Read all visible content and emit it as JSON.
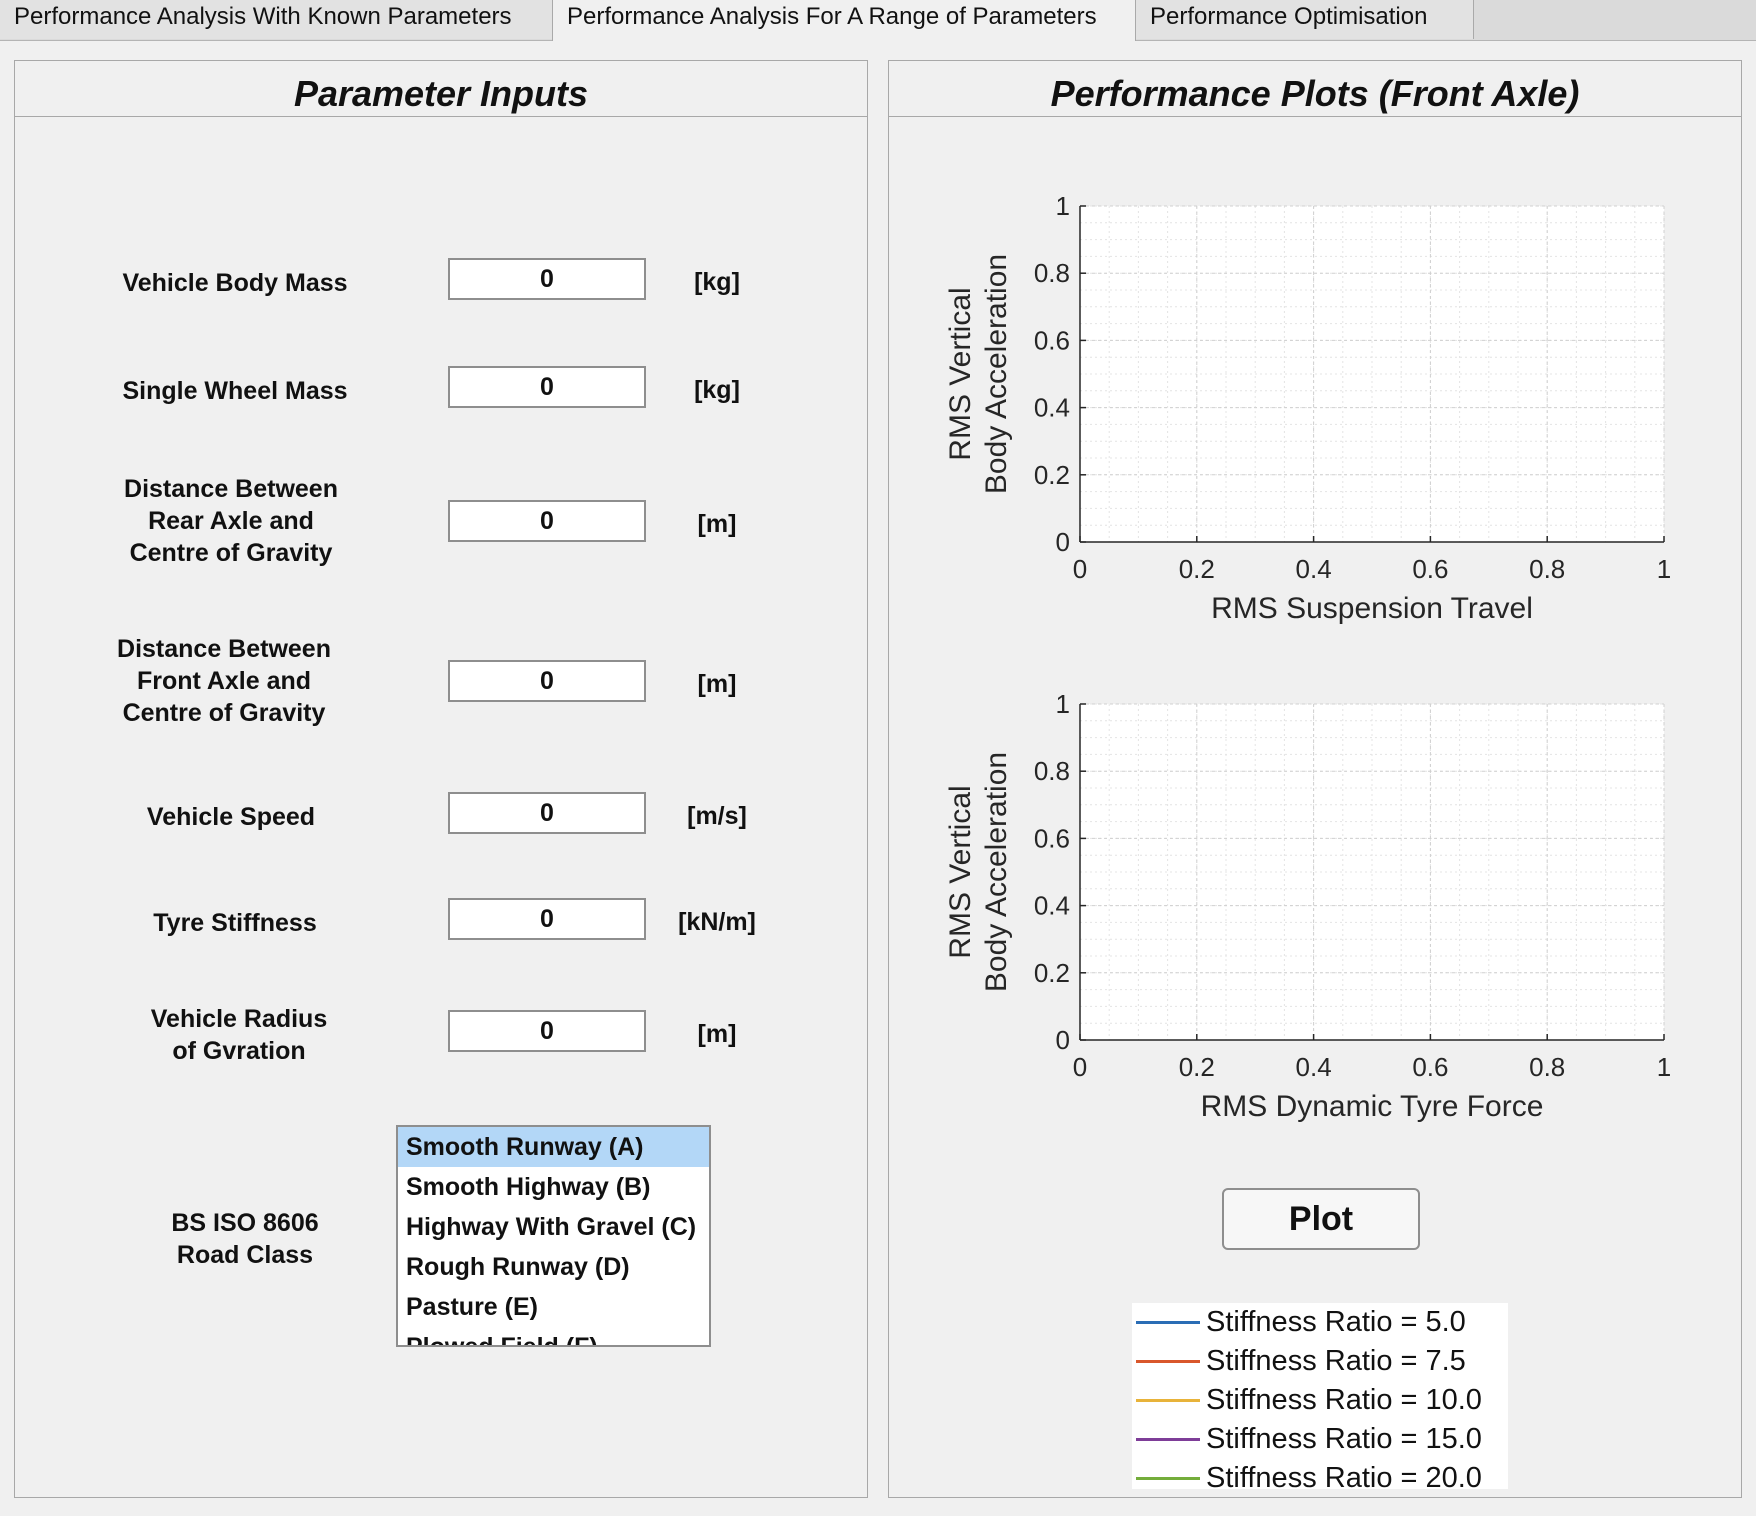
{
  "tabs": [
    {
      "label": "Performance Analysis With Known Parameters"
    },
    {
      "label": "Performance Analysis For A Range of Parameters"
    },
    {
      "label": "Performance Optimisation"
    }
  ],
  "left_panel": {
    "title": "Parameter Inputs",
    "params": [
      {
        "label": "Vehicle Body Mass",
        "value": "0",
        "unit": "[kg]"
      },
      {
        "label": "Single Wheel Mass",
        "value": "0",
        "unit": "[kg]"
      },
      {
        "label": "Distance Between\nRear Axle and\nCentre of Gravity",
        "value": "0",
        "unit": "[m]"
      },
      {
        "label": "Distance Between\nFront Axle and\nCentre of Gravity",
        "value": "0",
        "unit": "[m]"
      },
      {
        "label": "Vehicle Speed",
        "value": "0",
        "unit": "[m/s]"
      },
      {
        "label": "Tyre Stiffness",
        "value": "0",
        "unit": "[kN/m]"
      },
      {
        "label": "Vehicle Radius\nof Gvration",
        "value": "0",
        "unit": "[m]"
      }
    ],
    "road_class": {
      "label": "BS ISO 8606\nRoad Class",
      "options": [
        "Smooth Runway (A)",
        "Smooth Highway (B)",
        "Highway With Gravel (C)",
        "Rough Runway (D)",
        "Pasture (E)",
        "Plowed Field (F)"
      ],
      "selected": "Smooth Runway (A)"
    }
  },
  "right_panel": {
    "title": "Performance Plots (Front Axle)",
    "plot_button": "Plot"
  },
  "chart_data": [
    {
      "type": "line",
      "xlabel": "RMS Suspension Travel",
      "ylabel": [
        "RMS Vertical",
        "Body Acceleration"
      ],
      "xlim": [
        0,
        1
      ],
      "ylim": [
        0,
        1
      ],
      "xticks": [
        "0",
        "0.2",
        "0.4",
        "0.6",
        "0.8",
        "1"
      ],
      "yticks": [
        "0",
        "0.2",
        "0.4",
        "0.6",
        "0.8",
        "1"
      ],
      "grid": true,
      "minor_grid": true,
      "series": []
    },
    {
      "type": "line",
      "xlabel": "RMS Dynamic Tyre Force",
      "ylabel": [
        "RMS Vertical",
        "Body Acceleration"
      ],
      "xlim": [
        0,
        1
      ],
      "ylim": [
        0,
        1
      ],
      "xticks": [
        "0",
        "0.2",
        "0.4",
        "0.6",
        "0.8",
        "1"
      ],
      "yticks": [
        "0",
        "0.2",
        "0.4",
        "0.6",
        "0.8",
        "1"
      ],
      "grid": true,
      "minor_grid": true,
      "series": []
    }
  ],
  "legend": [
    {
      "label": "Stiffness Ratio = 5.0",
      "color": "#2a6db5"
    },
    {
      "label": "Stiffness Ratio = 7.5",
      "color": "#d9572b"
    },
    {
      "label": "Stiffness Ratio = 10.0",
      "color": "#e8b33a"
    },
    {
      "label": "Stiffness Ratio = 15.0",
      "color": "#7e3d98"
    },
    {
      "label": "Stiffness Ratio = 20.0",
      "color": "#74ad3b"
    }
  ]
}
